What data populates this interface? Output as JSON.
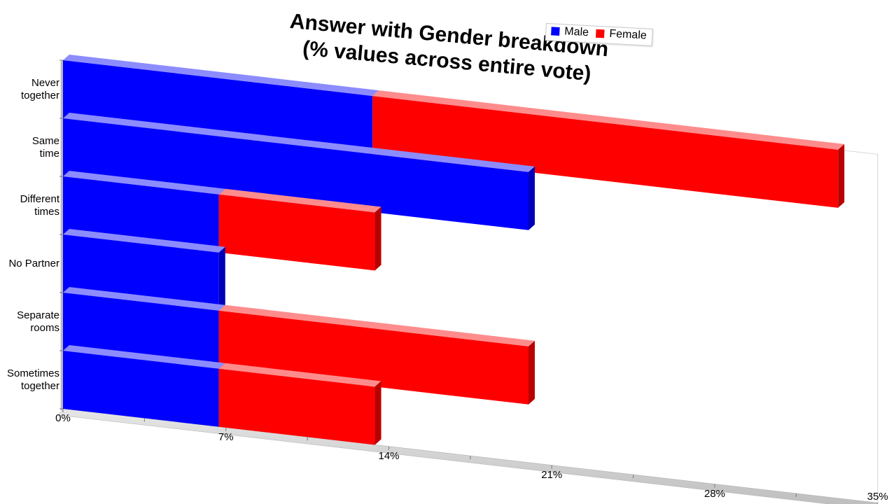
{
  "chart_data": {
    "type": "bar",
    "orientation": "horizontal",
    "stacked": true,
    "title_lines": [
      "Answer with Gender breakdown",
      "(% values across entire vote)"
    ],
    "categories": [
      "Never together",
      "Same time",
      "Different times",
      "No Partner",
      "Separate rooms",
      "Sometimes together"
    ],
    "category_display": [
      "Never\ntogether",
      "Same\ntime",
      "Different\ntimes",
      "No Partner",
      "Separate\nrooms",
      "Sometimes\ntogether"
    ],
    "series": [
      {
        "name": "Male",
        "color": "#0000ff",
        "values": [
          13.3,
          20,
          6.7,
          6.7,
          6.7,
          6.7
        ]
      },
      {
        "name": "Female",
        "color": "#ff0000",
        "values": [
          20,
          0,
          6.7,
          0,
          13.3,
          6.7
        ]
      }
    ],
    "x_ticks": [
      "0%",
      "7%",
      "14%",
      "21%",
      "28%",
      "35%"
    ],
    "xlim": [
      0,
      35
    ],
    "legend_position": "top-right",
    "grid": false
  }
}
